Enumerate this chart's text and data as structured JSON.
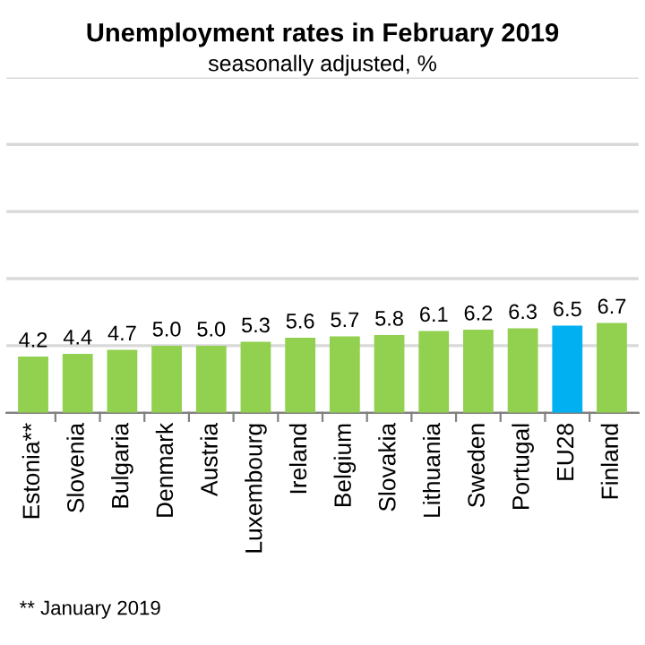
{
  "chart_data": {
    "type": "bar",
    "title": "Unemployment rates in February 2019",
    "subtitle": "seasonally adjusted, %",
    "categories": [
      "Estonia**",
      "Slovenia",
      "Bulgaria",
      "Denmark",
      "Austria",
      "Luxembourg",
      "Ireland",
      "Belgium",
      "Slovakia",
      "Lithuania",
      "Sweden",
      "Portugal",
      "EU28",
      "Finland"
    ],
    "values": [
      4.2,
      4.4,
      4.7,
      5.0,
      5.0,
      5.3,
      5.6,
      5.7,
      5.8,
      6.1,
      6.2,
      6.3,
      6.5,
      6.7
    ],
    "value_labels": [
      "4.2",
      "4.4",
      "4.7",
      "5.0",
      "5.0",
      "5.3",
      "5.6",
      "5.7",
      "5.8",
      "6.1",
      "6.2",
      "6.3",
      "6.5",
      "6.7"
    ],
    "colors": [
      "#92d050",
      "#92d050",
      "#92d050",
      "#92d050",
      "#92d050",
      "#92d050",
      "#92d050",
      "#92d050",
      "#92d050",
      "#92d050",
      "#92d050",
      "#92d050",
      "#00b0f0",
      "#92d050"
    ],
    "ylim": [
      0,
      25
    ],
    "yticks": [
      {
        "value": 0,
        "label": null
      },
      {
        "value": 5,
        "label": null
      },
      {
        "value": 10,
        "label": null
      },
      {
        "value": 15,
        "label": null
      },
      {
        "value": 20,
        "label": null
      },
      {
        "value": 25,
        "label": null
      }
    ],
    "grid": "y",
    "tick_labels": "x",
    "annotations": [
      "** January 2019"
    ]
  }
}
